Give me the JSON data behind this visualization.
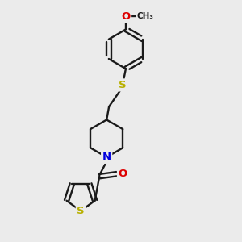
{
  "bg_color": "#ebebeb",
  "bond_color": "#1a1a1a",
  "bond_width": 1.7,
  "atom_colors": {
    "S_thioether": "#b8b000",
    "S_thiophene": "#b8b000",
    "N": "#0000dd",
    "O": "#dd0000",
    "C": "#1a1a1a"
  },
  "font_size": 9.5,
  "small_font": 7.5,
  "dbl_off": 0.1,
  "figsize": [
    3.0,
    3.0
  ],
  "dpi": 100,
  "xlim": [
    0,
    10
  ],
  "ylim": [
    0,
    10
  ]
}
